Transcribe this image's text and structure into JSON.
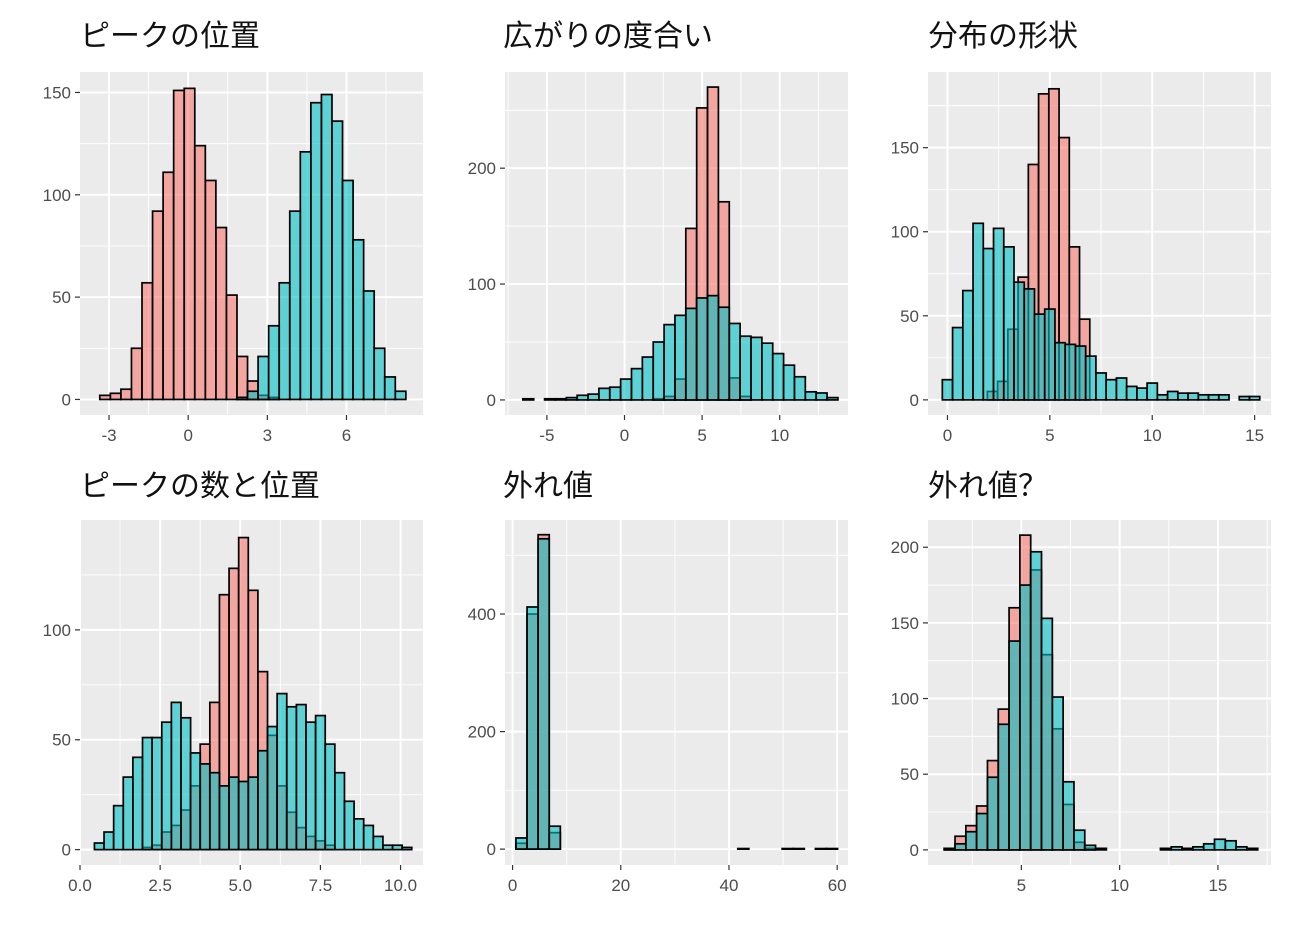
{
  "colors": {
    "series_a": "#F8766D",
    "series_b": "#00BFC4",
    "panel_background": "#EBEBEB",
    "grid": "#FFFFFF",
    "bar_outline": "#000000"
  },
  "chart_data": [
    {
      "type": "histogram",
      "title": "ピークの位置",
      "grid": true,
      "legend": "none",
      "overlap": "semi-transparent",
      "xlim": [
        -4.1,
        8.9
      ],
      "ylim": [
        -7.6,
        160
      ],
      "xticks": [
        -3,
        0,
        3,
        6
      ],
      "xtick_labels": [
        "-3",
        "0",
        "3",
        "6"
      ],
      "yticks": [
        0,
        50,
        100,
        150
      ],
      "ytick_labels": [
        "0",
        "50",
        "100",
        "150"
      ],
      "series": [
        {
          "x": [
            -3.15,
            -2.75,
            -2.35,
            -1.95,
            -1.55,
            -1.15,
            -0.75,
            -0.35,
            0.05,
            0.45,
            0.85,
            1.25,
            1.65,
            2.05,
            2.45,
            2.85,
            3.25
          ],
          "values": [
            2,
            3,
            5,
            25,
            57,
            92,
            111,
            151,
            152,
            124,
            107,
            84,
            51,
            21,
            9,
            2,
            1
          ]
        },
        {
          "x": [
            1.65,
            2.05,
            2.45,
            2.85,
            3.25,
            3.65,
            4.05,
            4.45,
            4.85,
            5.25,
            5.65,
            6.05,
            6.45,
            6.85,
            7.25,
            7.65,
            8.05
          ],
          "values": [
            0,
            1,
            4,
            21,
            36,
            57,
            92,
            121,
            145,
            149,
            136,
            107,
            78,
            53,
            25,
            11,
            4
          ]
        }
      ]
    },
    {
      "type": "histogram",
      "title": "広がりの度合い",
      "grid": true,
      "legend": "none",
      "overlap": "semi-transparent",
      "xlim": [
        -7.7,
        14.4
      ],
      "ylim": [
        -13,
        283
      ],
      "xticks": [
        -5,
        0,
        5,
        10
      ],
      "xtick_labels": [
        "-5",
        "0",
        "5",
        "10"
      ],
      "yticks": [
        0,
        100,
        200
      ],
      "ytick_labels": [
        "0",
        "100",
        "200"
      ],
      "series": [
        {
          "x": [
            2.2,
            2.9,
            3.6,
            4.3,
            5.0,
            5.7,
            6.4,
            7.1,
            7.8
          ],
          "values": [
            1,
            3,
            18,
            148,
            252,
            270,
            171,
            19,
            3
          ]
        },
        {
          "x": [
            -6.2,
            -5.5,
            -4.8,
            -4.1,
            -3.4,
            -2.7,
            -2.0,
            -1.3,
            -0.6,
            0.1,
            0.8,
            1.5,
            2.2,
            2.9,
            3.6,
            4.3,
            5.0,
            5.7,
            6.4,
            7.1,
            7.8,
            8.5,
            9.2,
            9.9,
            10.6,
            11.3,
            12.0,
            12.7,
            13.4
          ],
          "values": [
            1,
            0,
            1,
            1,
            2,
            4,
            5,
            10,
            11,
            18,
            27,
            37,
            50,
            65,
            73,
            79,
            88,
            90,
            80,
            66,
            55,
            54,
            49,
            40,
            30,
            20,
            7,
            6,
            2
          ]
        }
      ]
    },
    {
      "type": "histogram",
      "title": "分布の形状",
      "grid": true,
      "legend": "none",
      "overlap": "semi-transparent",
      "xlim": [
        -0.95,
        15.8
      ],
      "ylim": [
        -9,
        195
      ],
      "xticks": [
        0,
        5,
        10,
        15
      ],
      "xtick_labels": [
        "0",
        "5",
        "10",
        "15"
      ],
      "yticks": [
        0,
        50,
        100,
        150
      ],
      "ytick_labels": [
        "0",
        "50",
        "100",
        "150"
      ],
      "series": [
        {
          "x": [
            2.2,
            2.7,
            3.2,
            3.7,
            4.2,
            4.7,
            5.2,
            5.7,
            6.2,
            6.7
          ],
          "values": [
            5,
            11,
            42,
            73,
            140,
            182,
            185,
            156,
            91,
            48
          ]
        },
        {
          "x": [
            0.0,
            0.5,
            1.0,
            1.5,
            2.0,
            2.5,
            3.0,
            3.5,
            4.0,
            4.5,
            5.0,
            5.5,
            6.0,
            6.5,
            7.0,
            7.5,
            8.0,
            8.5,
            9.0,
            9.5,
            10.0,
            10.5,
            11.0,
            11.5,
            12.0,
            12.5,
            13.0,
            13.5,
            14.0,
            14.5,
            15.0
          ],
          "values": [
            12,
            43,
            65,
            105,
            90,
            102,
            91,
            70,
            66,
            51,
            54,
            34,
            33,
            32,
            26,
            16,
            12,
            13,
            8,
            7,
            10,
            3,
            5,
            4,
            4,
            3,
            3,
            3,
            0,
            2,
            2
          ]
        }
      ]
    },
    {
      "type": "histogram",
      "title": "ピークの数と位置",
      "grid": true,
      "legend": "none",
      "overlap": "semi-transparent",
      "xlim": [
        0.0,
        10.7
      ],
      "ylim": [
        -7,
        150
      ],
      "xticks": [
        0,
        2.5,
        5,
        7.5,
        10
      ],
      "xtick_labels": [
        "0.0",
        "2.5",
        "5.0",
        "7.5",
        "10.0"
      ],
      "yticks": [
        0,
        50,
        100
      ],
      "ytick_labels": [
        "0",
        "50",
        "100"
      ],
      "series": [
        {
          "x": [
            2.1,
            2.4,
            2.7,
            3.0,
            3.3,
            3.6,
            3.9,
            4.2,
            4.5,
            4.8,
            5.1,
            5.4,
            5.7,
            6.0,
            6.3,
            6.6,
            6.9,
            7.2,
            7.5,
            7.8
          ],
          "values": [
            1,
            2,
            8,
            11,
            18,
            29,
            48,
            67,
            116,
            128,
            142,
            118,
            81,
            52,
            29,
            17,
            10,
            6,
            4,
            2
          ]
        },
        {
          "x": [
            0.6,
            0.9,
            1.2,
            1.5,
            1.8,
            2.1,
            2.4,
            2.7,
            3.0,
            3.3,
            3.6,
            3.9,
            4.2,
            4.5,
            4.8,
            5.1,
            5.4,
            5.7,
            6.0,
            6.3,
            6.6,
            6.9,
            7.2,
            7.5,
            7.8,
            8.1,
            8.4,
            8.7,
            9.0,
            9.3,
            9.6,
            9.9,
            10.2
          ],
          "values": [
            3,
            8,
            20,
            33,
            42,
            51,
            51,
            58,
            67,
            60,
            44,
            39,
            35,
            29,
            33,
            31,
            33,
            45,
            56,
            71,
            65,
            66,
            58,
            61,
            48,
            35,
            22,
            14,
            11,
            6,
            2,
            2,
            1
          ]
        }
      ]
    },
    {
      "type": "histogram",
      "title": "外れ値",
      "grid": true,
      "legend": "none",
      "overlap": "semi-transparent",
      "xlim": [
        -1.4,
        62.0
      ],
      "ylim": [
        -27,
        560
      ],
      "xticks": [
        0,
        20,
        40,
        60
      ],
      "xtick_labels": [
        "0",
        "20",
        "40",
        "60"
      ],
      "yticks": [
        0,
        200,
        400
      ],
      "ytick_labels": [
        "0",
        "200",
        "400"
      ],
      "series": [
        {
          "x": [
            1.65,
            3.7,
            5.75,
            7.8,
            9.85,
            11.9,
            13.95,
            16.0,
            18.05,
            20.1,
            22.15,
            24.2,
            26.25,
            28.3,
            30.35,
            32.4,
            34.45,
            36.5,
            38.55,
            40.6,
            42.65,
            44.7,
            46.75,
            48.8,
            50.85,
            52.9,
            54.95,
            57.0,
            59.05
          ],
          "values": [
            10,
            400,
            535,
            28,
            0,
            0,
            0,
            0,
            0,
            0,
            0,
            0,
            0,
            0,
            0,
            0,
            0,
            0,
            0,
            0,
            0,
            0,
            0,
            0,
            0,
            0,
            0,
            0,
            0
          ]
        },
        {
          "x": [
            1.65,
            3.7,
            5.75,
            7.8,
            9.85,
            11.9,
            13.95,
            16.0,
            18.05,
            20.1,
            22.15,
            24.2,
            26.25,
            28.3,
            30.35,
            32.4,
            34.45,
            36.5,
            38.55,
            40.6,
            42.65,
            44.7,
            46.75,
            48.8,
            50.85,
            52.9,
            54.95,
            57.0,
            59.05
          ],
          "values": [
            19,
            412,
            528,
            39,
            0,
            0,
            0,
            0,
            0,
            0,
            0,
            0,
            0,
            0,
            0,
            0,
            0,
            0,
            0,
            0,
            1,
            0,
            0,
            0,
            1,
            1,
            0,
            1,
            1
          ]
        }
      ]
    },
    {
      "type": "histogram",
      "title": "外れ値？",
      "grid": true,
      "legend": "none",
      "overlap": "semi-transparent",
      "xlim": [
        0.25,
        17.7
      ],
      "ylim": [
        -10,
        218
      ],
      "xticks": [
        5,
        10,
        15
      ],
      "xtick_labels": [
        "5",
        "10",
        "15"
      ],
      "yticks": [
        0,
        50,
        100,
        150,
        200
      ],
      "ytick_labels": [
        "0",
        "50",
        "100",
        "150",
        "200"
      ],
      "series": [
        {
          "x": [
            1.35,
            1.9,
            2.45,
            3.0,
            3.55,
            4.1,
            4.65,
            5.2,
            5.75,
            6.3,
            6.85,
            7.4,
            7.95,
            8.5,
            9.05,
            9.6,
            10.15,
            10.7,
            11.25,
            11.8,
            12.35,
            12.9,
            13.45,
            14.0,
            14.55,
            15.1,
            15.65,
            16.2,
            16.75
          ],
          "values": [
            1,
            9,
            16,
            29,
            59,
            93,
            160,
            208,
            185,
            129,
            80,
            30,
            5,
            1,
            0,
            0,
            0,
            0,
            0,
            0,
            0,
            0,
            0,
            0,
            0,
            0,
            0,
            0,
            0
          ]
        },
        {
          "x": [
            1.35,
            1.9,
            2.45,
            3.0,
            3.55,
            4.1,
            4.65,
            5.2,
            5.75,
            6.3,
            6.85,
            7.4,
            7.95,
            8.5,
            9.05,
            9.6,
            10.15,
            10.7,
            11.25,
            11.8,
            12.35,
            12.9,
            13.45,
            14.0,
            14.55,
            15.1,
            15.65,
            16.2,
            16.75
          ],
          "values": [
            1,
            4,
            12,
            24,
            48,
            83,
            138,
            175,
            197,
            153,
            101,
            45,
            13,
            3,
            1,
            0,
            0,
            0,
            0,
            0,
            1,
            2,
            1,
            2,
            4,
            7,
            6,
            2,
            1
          ]
        }
      ]
    }
  ]
}
